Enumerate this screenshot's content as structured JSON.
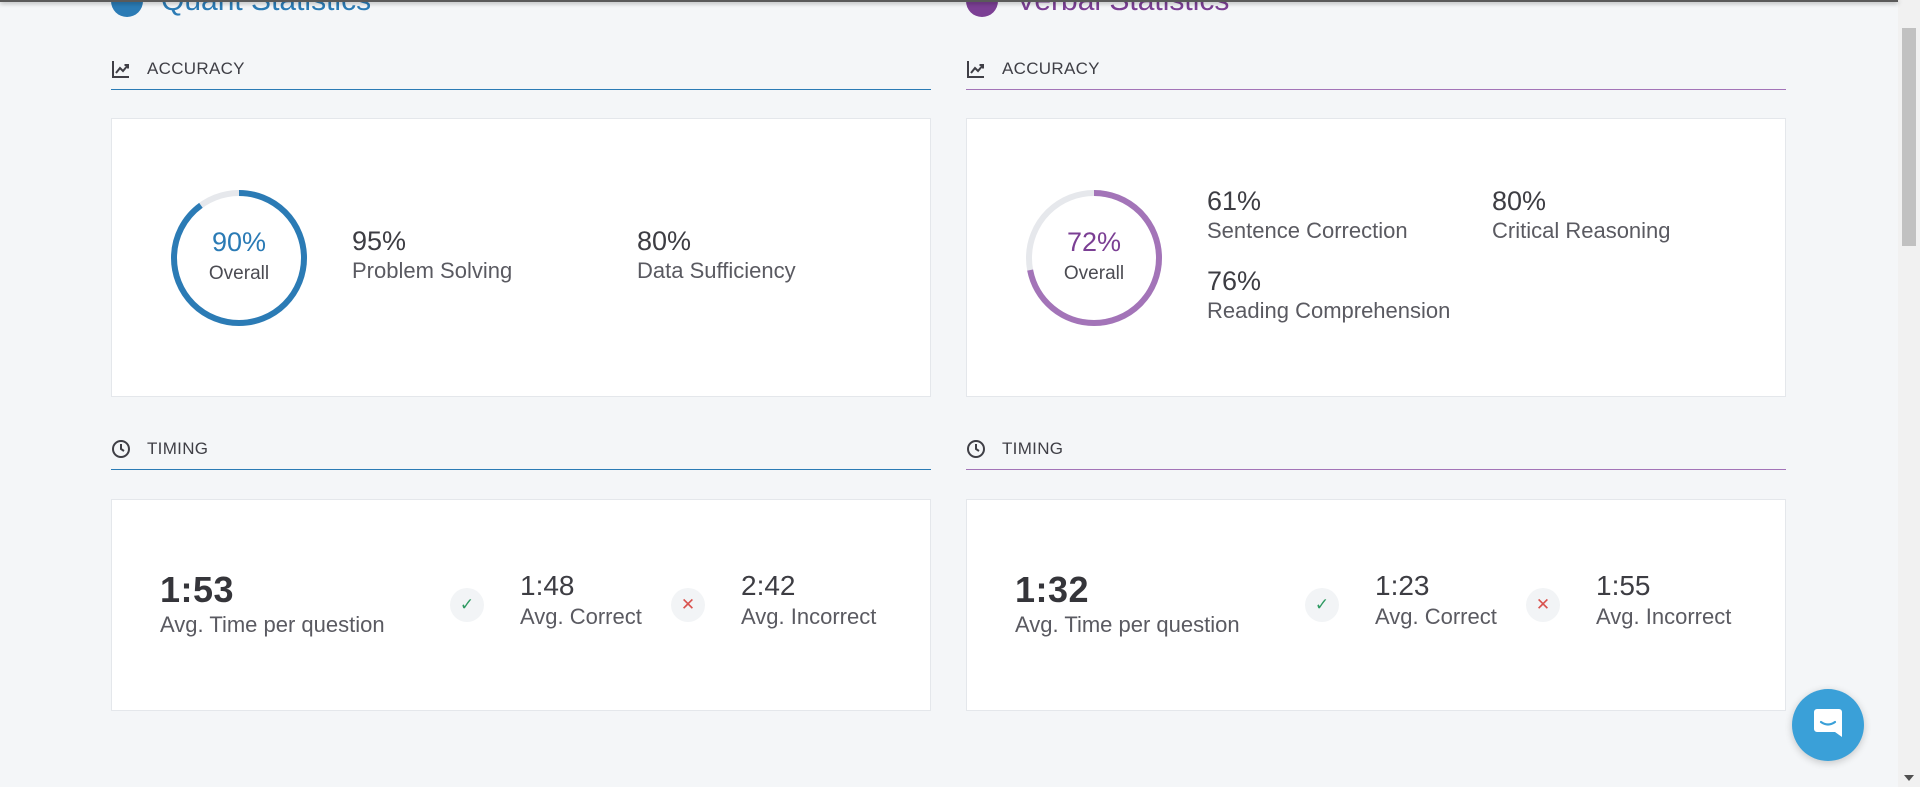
{
  "colors": {
    "quant_accent": "#2b7bb5",
    "verbal_accent": "#a374b8",
    "verbal_text": "#7b3f94",
    "ring_track": "#e6e8ec"
  },
  "quant": {
    "heading": "Quant Statistics",
    "accuracy": {
      "title": "ACCURACY",
      "overall_value": "90%",
      "overall_fraction": 0.9,
      "overall_label": "Overall",
      "metrics": [
        {
          "value": "95%",
          "label": "Problem Solving"
        },
        {
          "value": "80%",
          "label": "Data Sufficiency"
        }
      ]
    },
    "timing": {
      "title": "TIMING",
      "main_value": "1:53",
      "main_label": "Avg. Time per question",
      "correct_value": "1:48",
      "correct_label": "Avg. Correct",
      "incorrect_value": "2:42",
      "incorrect_label": "Avg. Incorrect"
    }
  },
  "verbal": {
    "heading": "Verbal Statistics",
    "accuracy": {
      "title": "ACCURACY",
      "overall_value": "72%",
      "overall_fraction": 0.72,
      "overall_label": "Overall",
      "metrics": [
        {
          "value": "61%",
          "label": "Sentence Correction"
        },
        {
          "value": "80%",
          "label": "Critical Reasoning"
        },
        {
          "value": "76%",
          "label": "Reading Comprehension"
        }
      ]
    },
    "timing": {
      "title": "TIMING",
      "main_value": "1:32",
      "main_label": "Avg. Time per question",
      "correct_value": "1:23",
      "correct_label": "Avg. Correct",
      "incorrect_value": "1:55",
      "incorrect_label": "Avg. Incorrect"
    }
  },
  "icons": {
    "accuracy": "line-chart-icon",
    "timing": "clock-icon",
    "correct": "check-icon",
    "incorrect": "x-icon",
    "chat": "chat-bubble-icon"
  }
}
